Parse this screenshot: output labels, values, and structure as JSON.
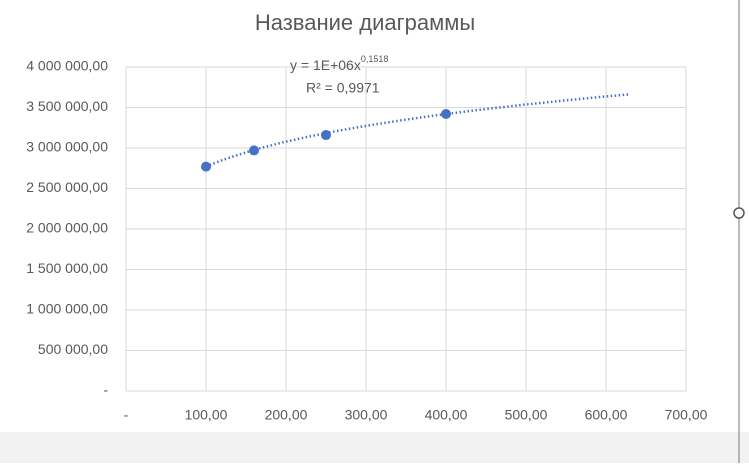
{
  "chart_data": {
    "type": "scatter",
    "title": "Название диаграммы",
    "x": [
      100,
      160,
      250,
      400
    ],
    "values": [
      2770000,
      2970000,
      3160000,
      3420000
    ],
    "color": "#4472c4",
    "xlim": [
      0,
      700
    ],
    "xticks": [
      {
        "value": 0,
        "label": "-"
      },
      {
        "value": 100,
        "label": "100,00"
      },
      {
        "value": 200,
        "label": "200,00"
      },
      {
        "value": 300,
        "label": "300,00"
      },
      {
        "value": 400,
        "label": "400,00"
      },
      {
        "value": 500,
        "label": "500,00"
      },
      {
        "value": 600,
        "label": "600,00"
      },
      {
        "value": 700,
        "label": "700,00"
      }
    ],
    "ylim": [
      0,
      4000000
    ],
    "yticks": [
      {
        "value": 0,
        "label": "-"
      },
      {
        "value": 500000,
        "label": "500 000,00"
      },
      {
        "value": 1000000,
        "label": "1 000 000,00"
      },
      {
        "value": 1500000,
        "label": "1 500 000,00"
      },
      {
        "value": 2000000,
        "label": "2 000 000,00"
      },
      {
        "value": 2500000,
        "label": "2 500 000,00"
      },
      {
        "value": 3000000,
        "label": "3 000 000,00"
      },
      {
        "value": 3500000,
        "label": "3 500 000,00"
      },
      {
        "value": 4000000,
        "label": "4 000 000,00"
      }
    ],
    "grid": true,
    "trendline": {
      "type": "power",
      "coefficient": 1377000,
      "exponent": 0.1518,
      "x_range": [
        100,
        630
      ],
      "equation": "y = 1E+06x",
      "exponent_label": "0,1518",
      "r_squared": "R² = 0,9971"
    }
  }
}
